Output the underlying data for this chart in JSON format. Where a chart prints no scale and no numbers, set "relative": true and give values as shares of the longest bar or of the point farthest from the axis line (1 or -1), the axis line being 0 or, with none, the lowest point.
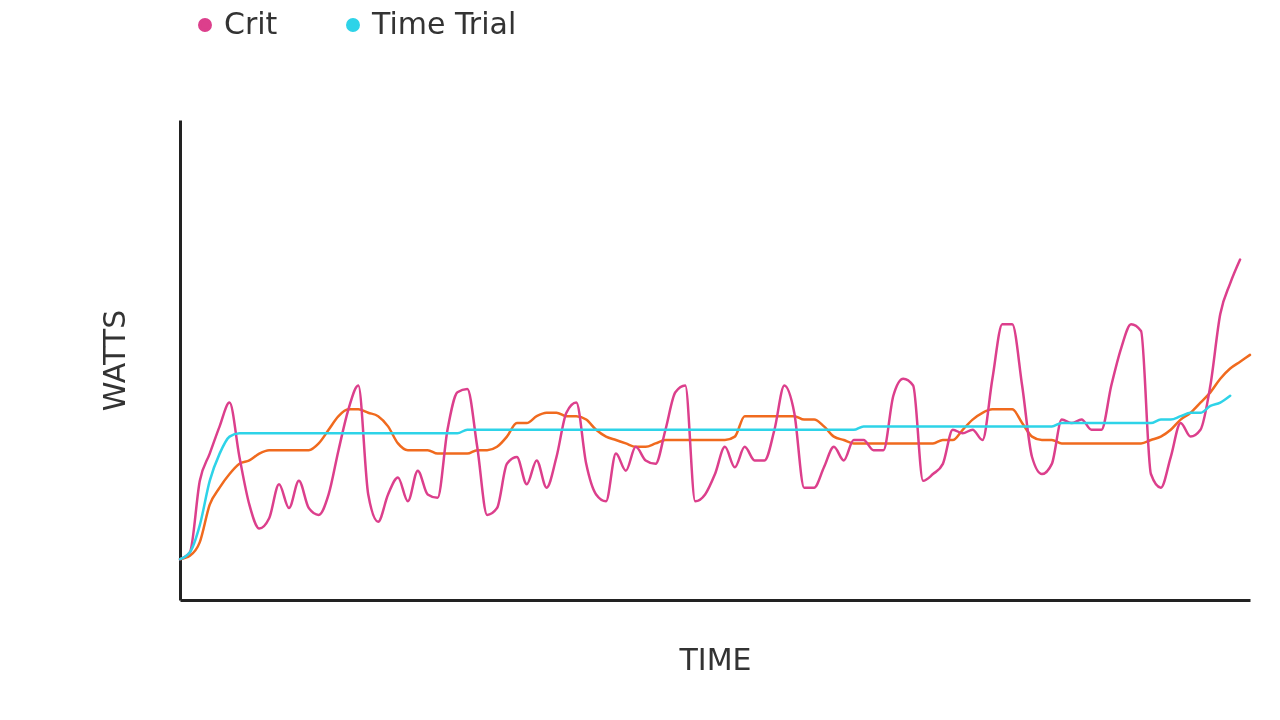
{
  "chart_data": {
    "type": "line",
    "relative": true,
    "xlabel": "TIME",
    "ylabel": "WATTS",
    "tick_labels": false,
    "grid": false,
    "legend": "top",
    "categories": [
      null,
      null,
      null,
      null,
      null,
      null,
      null,
      null,
      null,
      null,
      null,
      null,
      null,
      null,
      null,
      null,
      null,
      null,
      null,
      null,
      null,
      null,
      null,
      null,
      null,
      null,
      null,
      null,
      null,
      null,
      null,
      null,
      null,
      null,
      null,
      null,
      null,
      null,
      null,
      null,
      null,
      null,
      null,
      null,
      null,
      null,
      null,
      null,
      null,
      null,
      null,
      null,
      null,
      null,
      null,
      null,
      null,
      null,
      null,
      null,
      null,
      null,
      null,
      null,
      null,
      null,
      null,
      null,
      null,
      null,
      null,
      null,
      null,
      null,
      null,
      null,
      null,
      null,
      null,
      null,
      null,
      null,
      null,
      null,
      null,
      null,
      null,
      null,
      null,
      null,
      null,
      null,
      null,
      null,
      null,
      null,
      null,
      null,
      null,
      null,
      null,
      null,
      null,
      null,
      null,
      null,
      null,
      null,
      null
    ],
    "series": [
      {
        "color": "#f06a1e",
        "values": [
          0.12,
          0.13,
          0.17,
          0.28,
          0.33,
          0.37,
          0.4,
          0.41,
          0.43,
          0.44,
          0.44,
          0.44,
          0.44,
          0.44,
          0.46,
          0.5,
          0.54,
          0.56,
          0.56,
          0.55,
          0.54,
          0.51,
          0.46,
          0.44,
          0.44,
          0.44,
          0.43,
          0.43,
          0.43,
          0.43,
          0.44,
          0.44,
          0.45,
          0.48,
          0.52,
          0.52,
          0.54,
          0.55,
          0.55,
          0.54,
          0.54,
          0.53,
          0.5,
          0.48,
          0.47,
          0.46,
          0.45,
          0.45,
          0.46,
          0.47,
          0.47,
          0.47,
          0.47,
          0.47,
          0.47,
          0.47,
          0.48,
          0.54,
          0.54,
          0.54,
          0.54,
          0.54,
          0.54,
          0.53,
          0.53,
          0.51,
          0.48,
          0.47,
          0.46,
          0.46,
          0.46,
          0.46,
          0.46,
          0.46,
          0.46,
          0.46,
          0.46,
          0.47,
          0.47,
          0.5,
          0.53,
          0.55,
          0.56,
          0.56,
          0.56,
          0.52,
          0.48,
          0.47,
          0.47,
          0.46,
          0.46,
          0.46,
          0.46,
          0.46,
          0.46,
          0.46,
          0.46,
          0.46,
          0.47,
          0.48,
          0.5,
          0.53,
          0.55,
          0.58,
          0.61,
          0.65,
          0.68,
          0.7,
          0.72
        ]
      },
      {
        "name": "Crit",
        "color": "#dc3f8c",
        "values": [
          0.12,
          0.14,
          0.35,
          0.43,
          0.51,
          0.58,
          0.42,
          0.28,
          0.21,
          0.24,
          0.34,
          0.27,
          0.35,
          0.27,
          0.25,
          0.31,
          0.44,
          0.56,
          0.63,
          0.31,
          0.23,
          0.31,
          0.36,
          0.29,
          0.38,
          0.31,
          0.3,
          0.5,
          0.61,
          0.62,
          0.45,
          0.25,
          0.27,
          0.4,
          0.42,
          0.34,
          0.41,
          0.33,
          0.42,
          0.55,
          0.58,
          0.4,
          0.31,
          0.29,
          0.43,
          0.38,
          0.45,
          0.41,
          0.4,
          0.5,
          0.61,
          0.63,
          0.29,
          0.31,
          0.37,
          0.45,
          0.39,
          0.45,
          0.41,
          0.41,
          0.5,
          0.63,
          0.55,
          0.33,
          0.33,
          0.39,
          0.45,
          0.41,
          0.47,
          0.47,
          0.44,
          0.44,
          0.6,
          0.65,
          0.63,
          0.35,
          0.37,
          0.4,
          0.5,
          0.49,
          0.5,
          0.47,
          0.65,
          0.81,
          0.81,
          0.63,
          0.42,
          0.37,
          0.4,
          0.53,
          0.52,
          0.53,
          0.5,
          0.5,
          0.63,
          0.74,
          0.81,
          0.79,
          0.37,
          0.33,
          0.42,
          0.52,
          0.48,
          0.5,
          0.63,
          0.84,
          0.93,
          1,
          null
        ]
      },
      {
        "name": "Time Trial",
        "color": "#2ed3e8",
        "values": [
          0.12,
          0.14,
          0.22,
          0.35,
          0.43,
          0.48,
          0.49,
          0.49,
          0.49,
          0.49,
          0.49,
          0.49,
          0.49,
          0.49,
          0.49,
          0.49,
          0.49,
          0.49,
          0.49,
          0.49,
          0.49,
          0.49,
          0.49,
          0.49,
          0.49,
          0.49,
          0.49,
          0.49,
          0.49,
          0.5,
          0.5,
          0.5,
          0.5,
          0.5,
          0.5,
          0.5,
          0.5,
          0.5,
          0.5,
          0.5,
          0.5,
          0.5,
          0.5,
          0.5,
          0.5,
          0.5,
          0.5,
          0.5,
          0.5,
          0.5,
          0.5,
          0.5,
          0.5,
          0.5,
          0.5,
          0.5,
          0.5,
          0.5,
          0.5,
          0.5,
          0.5,
          0.5,
          0.5,
          0.5,
          0.5,
          0.5,
          0.5,
          0.5,
          0.5,
          0.51,
          0.51,
          0.51,
          0.51,
          0.51,
          0.51,
          0.51,
          0.51,
          0.51,
          0.51,
          0.51,
          0.51,
          0.51,
          0.51,
          0.51,
          0.51,
          0.51,
          0.51,
          0.51,
          0.51,
          0.52,
          0.52,
          0.52,
          0.52,
          0.52,
          0.52,
          0.52,
          0.52,
          0.52,
          0.52,
          0.53,
          0.53,
          0.54,
          0.55,
          0.55,
          0.57,
          0.58,
          0.6,
          null,
          null
        ]
      }
    ]
  }
}
